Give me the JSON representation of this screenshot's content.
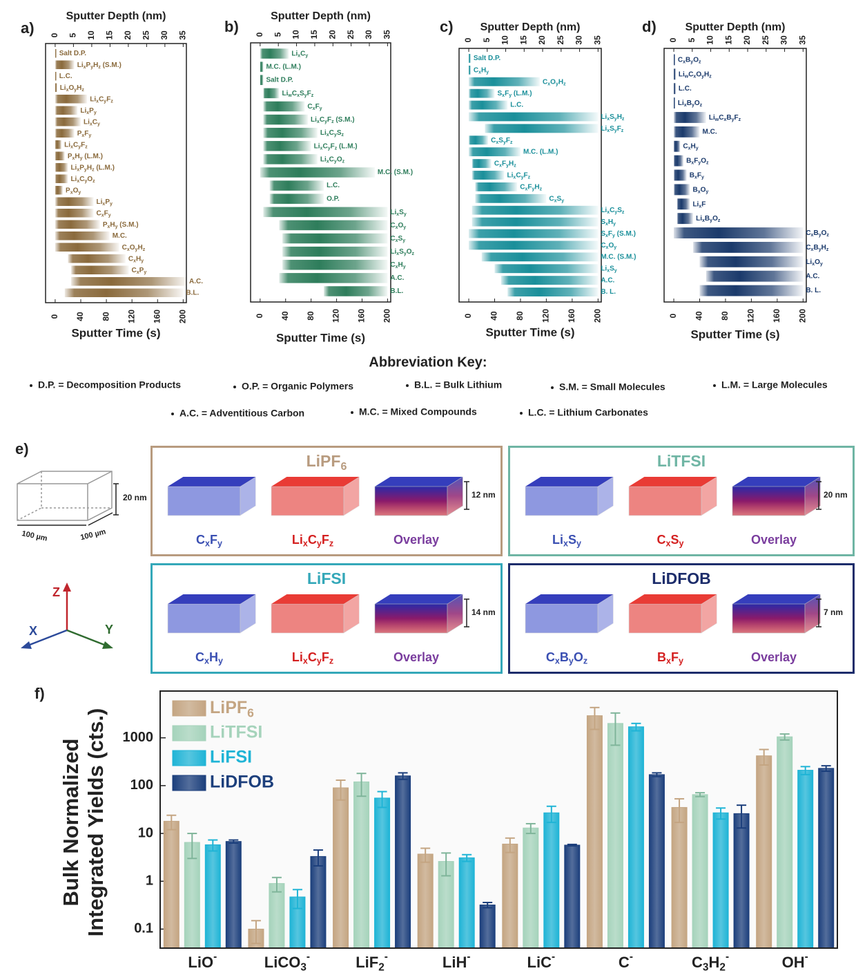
{
  "chart_data": [
    {
      "type": "strip",
      "label": "a)",
      "x2_label": "Sputter Depth (nm)",
      "x_label": "Sputter Time (s)",
      "color": "#8a6a3c",
      "xlim": [
        -15,
        205
      ],
      "xticks": [
        0,
        40,
        80,
        120,
        160,
        200
      ],
      "x2lim": [
        -2.625,
        35.875
      ],
      "x2ticks": [
        0,
        5,
        10,
        15,
        20,
        25,
        30,
        35
      ],
      "categories": [
        "Salt D.P.",
        "LixPyHz (S.M.)",
        "L.C.",
        "LixOyHz",
        "LixCyFz",
        "LixPy",
        "LixCy",
        "PxFy",
        "LixCyFz",
        "PxHy (L.M.)",
        "LixPyHz (L.M.)",
        "LixCyOz",
        "PxOy",
        "LixPy",
        "CxFy",
        "PxHy (S.M.)",
        "M.C.",
        "CxOyHz",
        "CxHy",
        "CxPy",
        "A.C.",
        "B.L."
      ],
      "starts": [
        0,
        0,
        0,
        0,
        0,
        0,
        0,
        0,
        0,
        0,
        0,
        0,
        0,
        0,
        0,
        0,
        0,
        0,
        20,
        25,
        25,
        15
      ],
      "ends": [
        2,
        30,
        2,
        3,
        50,
        35,
        40,
        30,
        10,
        15,
        20,
        20,
        12,
        60,
        60,
        70,
        85,
        100,
        110,
        115,
        205,
        200
      ]
    },
    {
      "type": "strip",
      "label": "b)",
      "x2_label": "Sputter Depth (nm)",
      "x_label": "Sputter Time (s)",
      "color": "#2e7d5b",
      "xlim": [
        -15,
        205
      ],
      "xticks": [
        0,
        40,
        80,
        120,
        160,
        200
      ],
      "x2lim": [
        -2.625,
        35.875
      ],
      "x2ticks": [
        0,
        5,
        10,
        15,
        20,
        25,
        30,
        35
      ],
      "categories": [
        "LixCy",
        "M.C. (L.M.)",
        "Salt D.P.",
        "LiwCxSyFz",
        "CxFy",
        "LixCyFz (S.M.)",
        "LixCySz",
        "LixCyFz (L.M.)",
        "LixCyOz",
        "M.C. (S.M.)",
        "L.C.",
        "O.P.",
        "LixSy",
        "CxOy",
        "CxSy",
        "LixSyOz",
        "CxHy",
        "A.C.",
        "B.L."
      ],
      "starts": [
        0,
        0,
        0,
        5,
        5,
        5,
        5,
        5,
        5,
        0,
        15,
        15,
        5,
        30,
        35,
        35,
        35,
        30,
        100
      ],
      "ends": [
        45,
        5,
        5,
        30,
        70,
        75,
        90,
        80,
        90,
        180,
        100,
        100,
        200,
        200,
        200,
        200,
        200,
        200,
        200
      ]
    },
    {
      "type": "strip",
      "label": "c)",
      "x2_label": "Sputter Depth (nm)",
      "x_label": "Sputter Time (s)",
      "color": "#1a8f9a",
      "xlim": [
        -15,
        205
      ],
      "xticks": [
        0,
        40,
        80,
        120,
        160,
        200
      ],
      "x2lim": [
        -2.625,
        35.875
      ],
      "x2ticks": [
        0,
        5,
        10,
        15,
        20,
        25,
        30,
        35
      ],
      "categories": [
        "Salt D.P.",
        "CxHy",
        "CxOyHz",
        "SxFy (L.M.)",
        "L.C.",
        "LixSyHz",
        "LixSyFz",
        "CxSyFz",
        "M.C. (L.M.)",
        "CxFyHz",
        "LixCyFz",
        "CxFyHz",
        "CxSy",
        "LixCySz",
        "SxHy",
        "SxFy (S.M.)",
        "CxOy",
        "M.C. (S.M.)",
        "LixSy",
        "A.C.",
        "B. L."
      ],
      "starts": [
        0,
        0,
        0,
        0,
        0,
        0,
        25,
        0,
        0,
        5,
        5,
        10,
        10,
        5,
        5,
        0,
        0,
        20,
        40,
        50,
        60
      ],
      "ends": [
        3,
        3,
        110,
        40,
        60,
        200,
        200,
        30,
        80,
        35,
        55,
        75,
        120,
        200,
        200,
        200,
        200,
        200,
        200,
        200,
        200
      ]
    },
    {
      "type": "strip",
      "label": "d)",
      "x2_label": "Sputter Depth (nm)",
      "x_label": "Sputter Time (s)",
      "color": "#1b3a6b",
      "xlim": [
        -15,
        205
      ],
      "xticks": [
        0,
        40,
        80,
        120,
        160,
        200
      ],
      "x2lim": [
        -2.625,
        35.875
      ],
      "x2ticks": [
        0,
        5,
        10,
        15,
        20,
        25,
        30,
        35
      ],
      "categories": [
        "CxByOz",
        "LiwCxOyHz",
        "L.C.",
        "LixByOz",
        "LiwCxByFz",
        "M.C.",
        "CxHy",
        "BxFyOz",
        "BxFy",
        "BxOy",
        "LixF",
        "LixByOz",
        "CxByOz",
        "CxByHz",
        "LixOy",
        "A.C.",
        "B. L."
      ],
      "starts": [
        0,
        0,
        0,
        0,
        0,
        0,
        0,
        0,
        0,
        0,
        5,
        5,
        0,
        30,
        40,
        50,
        40
      ],
      "ends": [
        2,
        3,
        3,
        2,
        50,
        40,
        10,
        15,
        20,
        25,
        25,
        30,
        200,
        200,
        200,
        200,
        200
      ]
    },
    {
      "type": "bar",
      "label": "f)",
      "y_label": [
        "Bulk Normalized",
        "Integrated Yields (cts.)"
      ],
      "log_scale": true,
      "legend": "upper left",
      "ylim": [
        0.04,
        9500
      ],
      "yticks": [
        0.1,
        1,
        10,
        100,
        1000
      ],
      "categories": [
        "LiO-",
        "LiCO3-",
        "LiF2-",
        "LiH-",
        "LiC-",
        "C-",
        "C3H2-",
        "OH-"
      ],
      "series": [
        {
          "name": "LiPF6",
          "color": "#c4a582",
          "values": [
            18,
            0.1,
            90,
            3.7,
            6,
            2900,
            35,
            420
          ],
          "errors": [
            6,
            0.05,
            40,
            1.2,
            2,
            1400,
            18,
            150
          ]
        },
        {
          "name": "LiTFSI",
          "color": "#a5d3bb",
          "values": [
            6.5,
            0.9,
            120,
            2.6,
            13,
            2000,
            65,
            1050
          ],
          "errors": [
            3.5,
            0.3,
            60,
            1.3,
            3,
            1300,
            6,
            150
          ]
        },
        {
          "name": "LiFSI",
          "color": "#1fb4d6",
          "values": [
            5.8,
            0.47,
            55,
            3.1,
            27,
            1700,
            27,
            210
          ],
          "errors": [
            1.5,
            0.2,
            20,
            0.5,
            10,
            300,
            7,
            40
          ]
        },
        {
          "name": "LiDFOB",
          "color": "#1c3f7c",
          "values": [
            6.8,
            3.3,
            160,
            0.32,
            5.7,
            170,
            26,
            230
          ],
          "errors": [
            0.5,
            1.2,
            25,
            0.04,
            0.2,
            15,
            13,
            30
          ]
        }
      ]
    }
  ],
  "key": {
    "title": "Abbreviation Key:",
    "items": [
      "D.P. = Decomposition Products",
      "O.P. = Organic Polymers",
      "B.L. = Bulk Lithium",
      "S.M. = Small Molecules",
      "L.M. = Large Molecules",
      "A.C. = Adventitious Carbon",
      "M.C. = Mixed Compounds",
      "L.C. = Lithium Carbonates"
    ]
  },
  "panel_e": {
    "label": "e)",
    "scale_height": "20 nm",
    "scale_width": "100 µm",
    "scale_depth": "100 µm",
    "axis_z": "Z",
    "axis_x": "X",
    "axis_y": "Y",
    "panels": [
      {
        "title": "LiPF6",
        "color": "#b89b7f",
        "labels": [
          "CxFy",
          "LixCyFz",
          "Overlay"
        ],
        "thickness": "12 nm"
      },
      {
        "title": "LiTFSI",
        "color": "#6fb5a4",
        "labels": [
          "LixSy",
          "CxSy",
          "Overlay"
        ],
        "thickness": "20 nm"
      },
      {
        "title": "LiFSI",
        "color": "#34a8b9",
        "labels": [
          "CxHy",
          "LixCyFz",
          "Overlay"
        ],
        "thickness": "14 nm"
      },
      {
        "title": "LiDFOB",
        "color": "#1d2d6b",
        "labels": [
          "CxByOz",
          "BxFy",
          "Overlay"
        ],
        "thickness": "7 nm"
      }
    ]
  }
}
